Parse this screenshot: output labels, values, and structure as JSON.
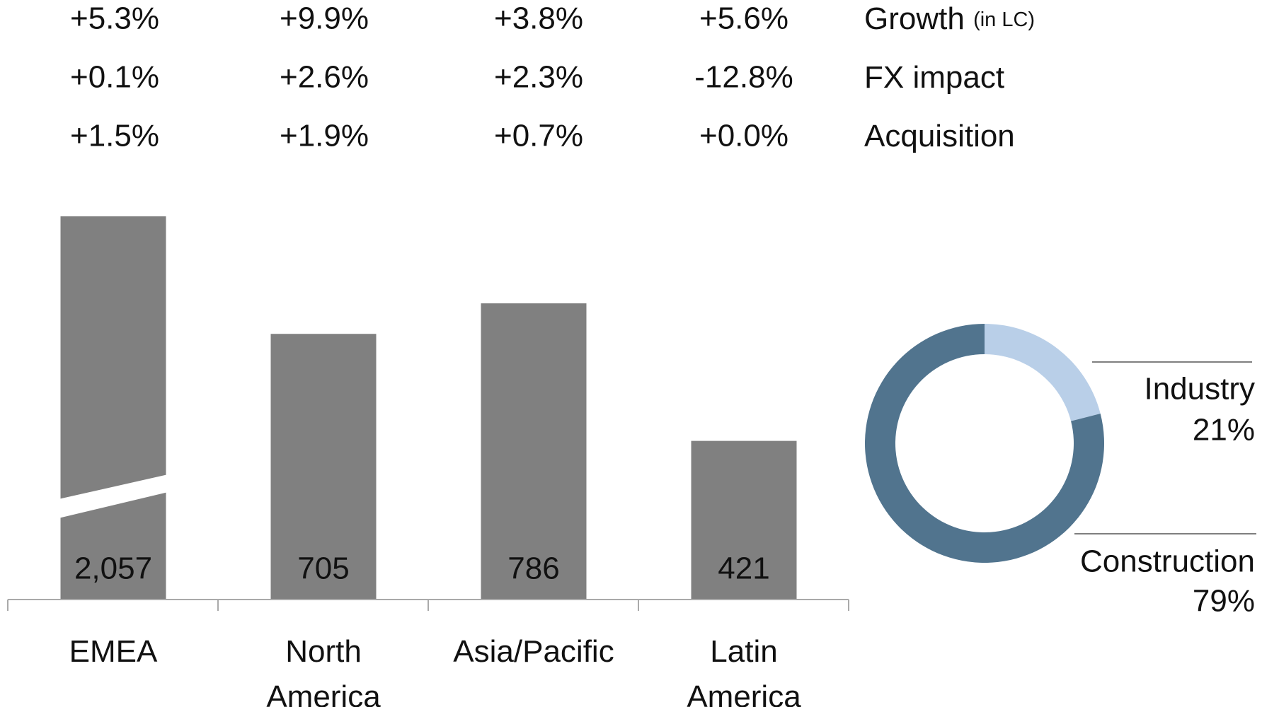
{
  "table": {
    "rows": [
      {
        "label": "Growth",
        "note": "(in LC)",
        "values": [
          "+5.3%",
          "+9.9%",
          "+3.8%",
          "+5.6%"
        ]
      },
      {
        "label": "FX impact",
        "values": [
          "+0.1%",
          "+2.6%",
          "+2.3%",
          "-12.8%"
        ]
      },
      {
        "label": "Acquisition",
        "values": [
          "+1.5%",
          "+1.9%",
          "+0.7%",
          "+0.0%"
        ]
      }
    ]
  },
  "chart_data": [
    {
      "type": "bar",
      "categories": [
        "EMEA",
        "North America",
        "Asia/Pacific",
        "Latin America"
      ],
      "values": [
        2057,
        705,
        786,
        421
      ],
      "value_labels": [
        "2,057",
        "705",
        "786",
        "421"
      ],
      "color": "#808080",
      "ylim": [
        0,
        1000
      ]
    },
    {
      "type": "pie",
      "donut": true,
      "categories": [
        "Industry",
        "Construction"
      ],
      "values": [
        21,
        79
      ],
      "value_labels": [
        "21%",
        "79%"
      ],
      "colors": [
        "#b9cfe8",
        "#51748e"
      ]
    }
  ]
}
